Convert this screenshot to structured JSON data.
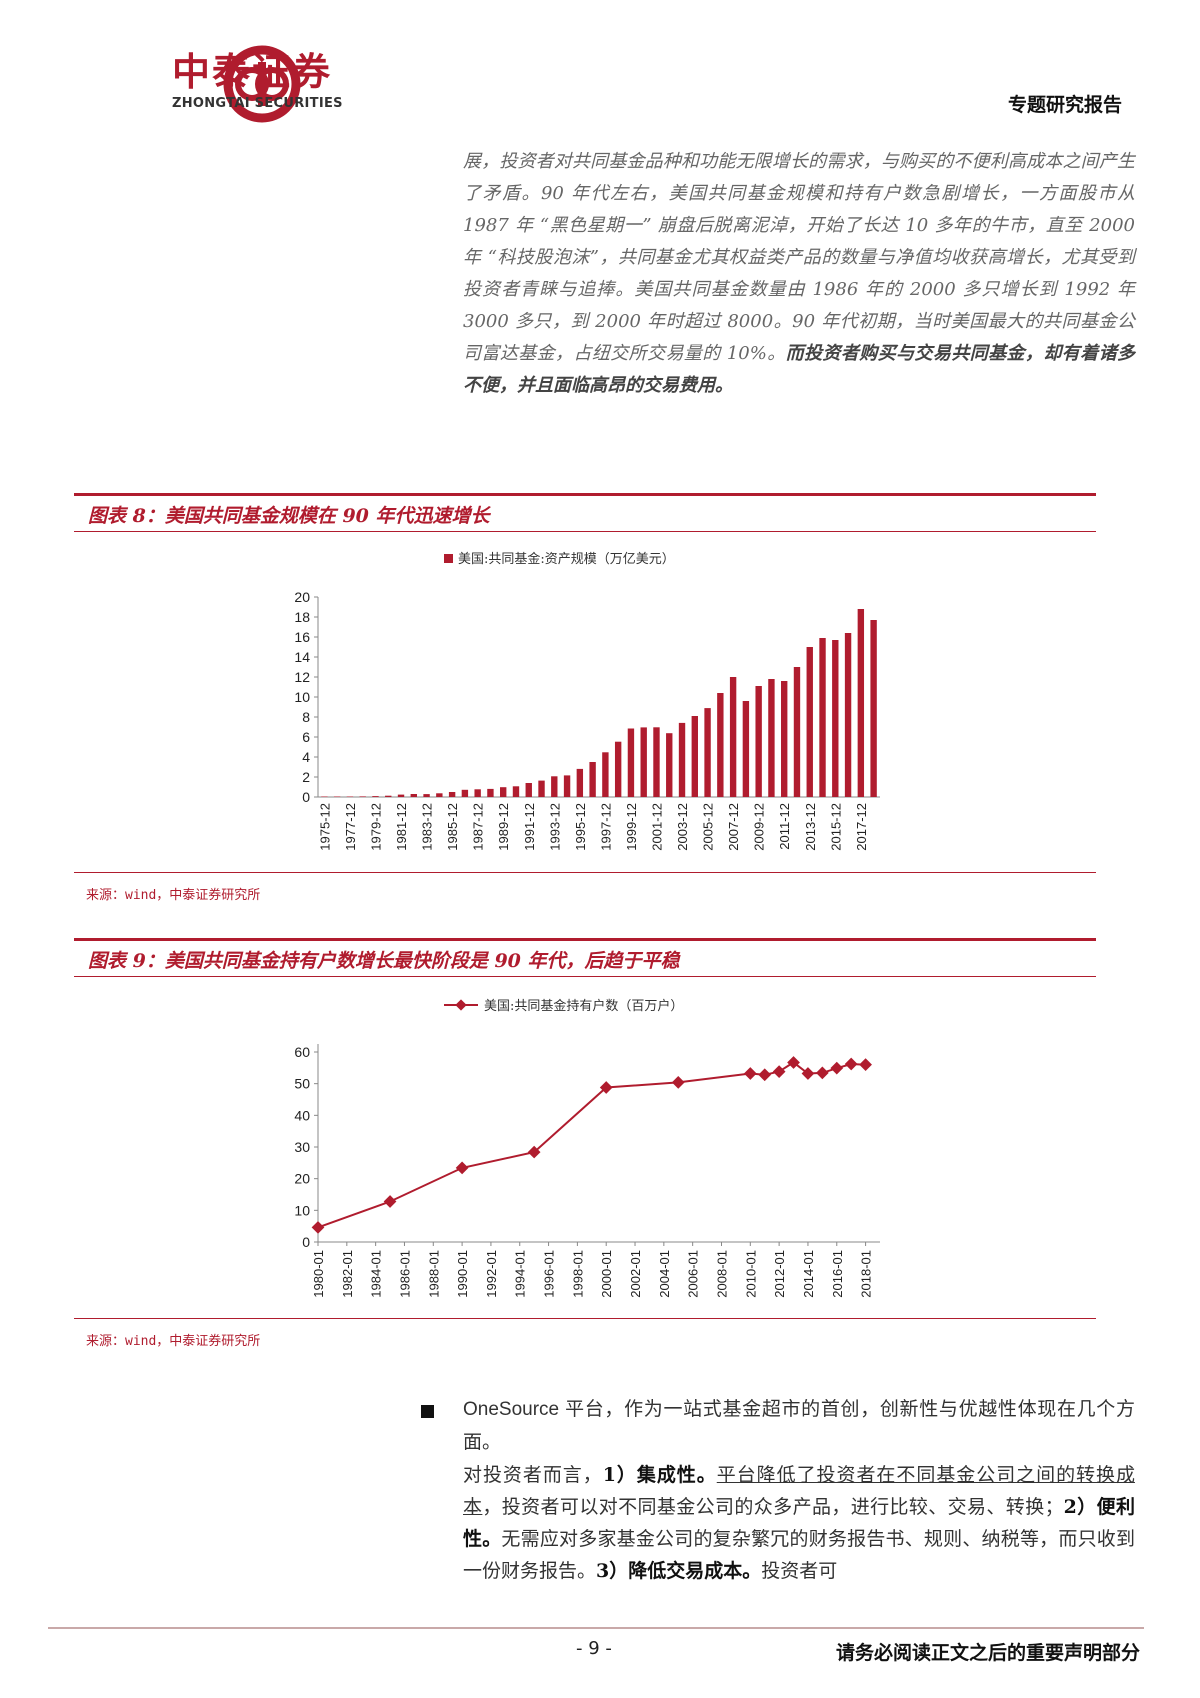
{
  "header": {
    "brand_cn": "中泰证券",
    "brand_en": "ZHONGTAI SECURITIES",
    "report_type": "专题研究报告",
    "logo_color": "#b01c2e"
  },
  "intro": {
    "text": "展，投资者对共同基金品种和功能无限增长的需求，与购买的不便利高成本之间产生了矛盾。90 年代左右，美国共同基金规模和持有户数急剧增长，一方面股市从 1987 年 “黑色星期一” 崩盘后脱离泥淖，开始了长达 10 多年的牛市，直至 2000 年 “科技股泡沫”，共同基金尤其权益类产品的数量与净值均收获高增长，尤其受到投资者青睐与追捧。美国共同基金数量由 1986 年的 2000 多只增长到 1992 年 3000 多只，到 2000 年时超过 8000。90 年代初期，当时美国最大的共同基金公司富达基金，占纽交所交易量的 10%。",
    "bold_text": "而投资者购买与交易共同基金，却有着诸多不便，并且面临高昂的交易费用。"
  },
  "figure8": {
    "title": "图表 8：美国共同基金规模在 90 年代迅速增长",
    "source": "来源：wind，中泰证券研究所",
    "chart_data": {
      "type": "bar",
      "legend": "美国:共同基金:资产规模（万亿美元）",
      "legend_position": "top",
      "color": "#b01c2e",
      "ylim": [
        0,
        20
      ],
      "yticks": [
        0,
        2,
        4,
        6,
        8,
        10,
        12,
        14,
        16,
        18,
        20
      ],
      "xtick_labels": [
        "1975-12",
        "1977-12",
        "1979-12",
        "1981-12",
        "1983-12",
        "1985-12",
        "1987-12",
        "1989-12",
        "1991-12",
        "1993-12",
        "1995-12",
        "1997-12",
        "1999-12",
        "2001-12",
        "2003-12",
        "2005-12",
        "2007-12",
        "2009-12",
        "2011-12",
        "2013-12",
        "2015-12",
        "2017-12"
      ],
      "categories": [
        "1975-12",
        "1976-12",
        "1977-12",
        "1978-12",
        "1979-12",
        "1980-12",
        "1981-12",
        "1982-12",
        "1983-12",
        "1984-12",
        "1985-12",
        "1986-12",
        "1987-12",
        "1988-12",
        "1989-12",
        "1990-12",
        "1991-12",
        "1992-12",
        "1993-12",
        "1994-12",
        "1995-12",
        "1996-12",
        "1997-12",
        "1998-12",
        "1999-12",
        "2000-12",
        "2001-12",
        "2002-12",
        "2003-12",
        "2004-12",
        "2005-12",
        "2006-12",
        "2007-12",
        "2008-12",
        "2009-12",
        "2010-12",
        "2011-12",
        "2012-12",
        "2013-12",
        "2014-12",
        "2015-12",
        "2016-12",
        "2017-12",
        "2018-12"
      ],
      "values": [
        0.05,
        0.05,
        0.05,
        0.06,
        0.09,
        0.13,
        0.24,
        0.3,
        0.29,
        0.37,
        0.5,
        0.72,
        0.77,
        0.81,
        0.98,
        1.07,
        1.4,
        1.64,
        2.07,
        2.16,
        2.81,
        3.5,
        4.47,
        5.53,
        6.85,
        6.96,
        6.97,
        6.38,
        7.41,
        8.1,
        8.89,
        10.4,
        12.0,
        9.6,
        11.1,
        11.8,
        11.6,
        13.0,
        15.0,
        15.9,
        15.7,
        16.4,
        18.8,
        17.7
      ]
    }
  },
  "figure9": {
    "title": "图表 9：美国共同基金持有户数增长最快阶段是 90 年代，后趋于平稳",
    "source": "来源：wind，中泰证券研究所",
    "chart_data": {
      "type": "line",
      "legend": "美国:共同基金持有户数（百万户）",
      "legend_position": "top",
      "color": "#b01c2e",
      "ylim": [
        0,
        60
      ],
      "yticks": [
        0,
        10,
        20,
        30,
        40,
        50,
        60
      ],
      "xlim": [
        1980,
        2019
      ],
      "xtick_labels": [
        "1980-01",
        "1982-01",
        "1984-01",
        "1986-01",
        "1988-01",
        "1990-01",
        "1992-01",
        "1994-01",
        "1996-01",
        "1998-01",
        "2000-01",
        "2002-01",
        "2004-01",
        "2006-01",
        "2008-01",
        "2010-01",
        "2012-01",
        "2014-01",
        "2016-01",
        "2018-01"
      ],
      "x": [
        1980,
        1985,
        1990,
        1995,
        2000,
        2005,
        2010,
        2011,
        2012,
        2013,
        2014,
        2015,
        2016,
        2017,
        2018
      ],
      "y": [
        4.6,
        12.8,
        23.4,
        28.4,
        48.8,
        50.4,
        53.2,
        52.8,
        53.8,
        56.7,
        53.2,
        53.4,
        54.9,
        56.2,
        56.0
      ]
    }
  },
  "body2": {
    "p1": "OneSource 平台，作为一站式基金超市的首创，创新性与优越性体现在几个方面。",
    "p2_lead": "对投资者而言，",
    "p2_n1": "1）集成性。",
    "p2_u1": "平台降低了投资者在不同基金公司之间的转换成本",
    "p2_t1": "，投资者可以对不同基金公司的众多产品，进行比较、交易、转换；",
    "p2_n2": "2）便利性。",
    "p2_t2": "无需应对多家基金公司的复杂繁冗的财务报告书、规则、纳税等，而只收到一份财务报告。",
    "p2_n3": "3）降低交易成本。",
    "p2_t3": "投资者可"
  },
  "footer": {
    "page": "- 9 -",
    "disclaimer": "请务必阅读正文之后的重要声明部分"
  }
}
